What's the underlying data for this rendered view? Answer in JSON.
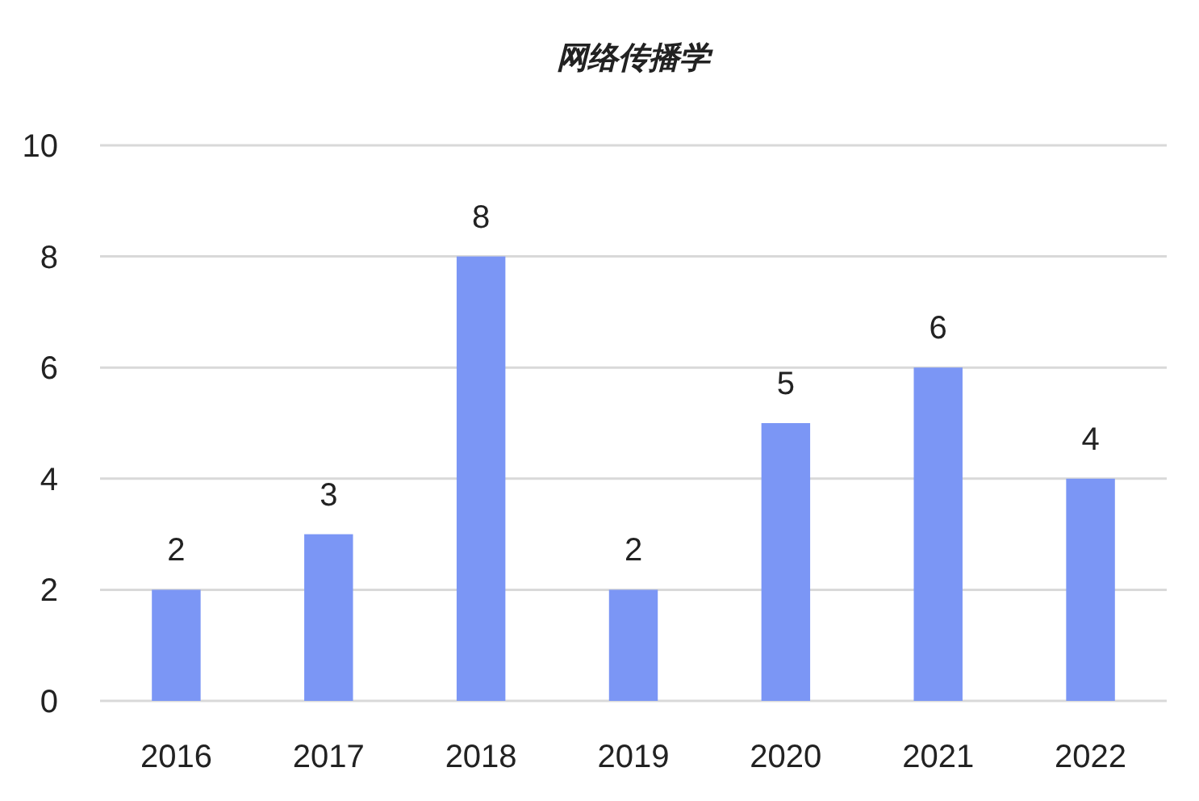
{
  "chart_data": {
    "type": "bar",
    "title": "网络传播学",
    "categories": [
      "2016",
      "2017",
      "2018",
      "2019",
      "2020",
      "2021",
      "2022"
    ],
    "values": [
      2,
      3,
      8,
      2,
      5,
      6,
      4
    ],
    "color": "#7b96f5",
    "ylim": [
      0,
      10
    ],
    "yticks": [
      0,
      2,
      4,
      6,
      8,
      10
    ],
    "grid": "y",
    "data_labels": true
  }
}
